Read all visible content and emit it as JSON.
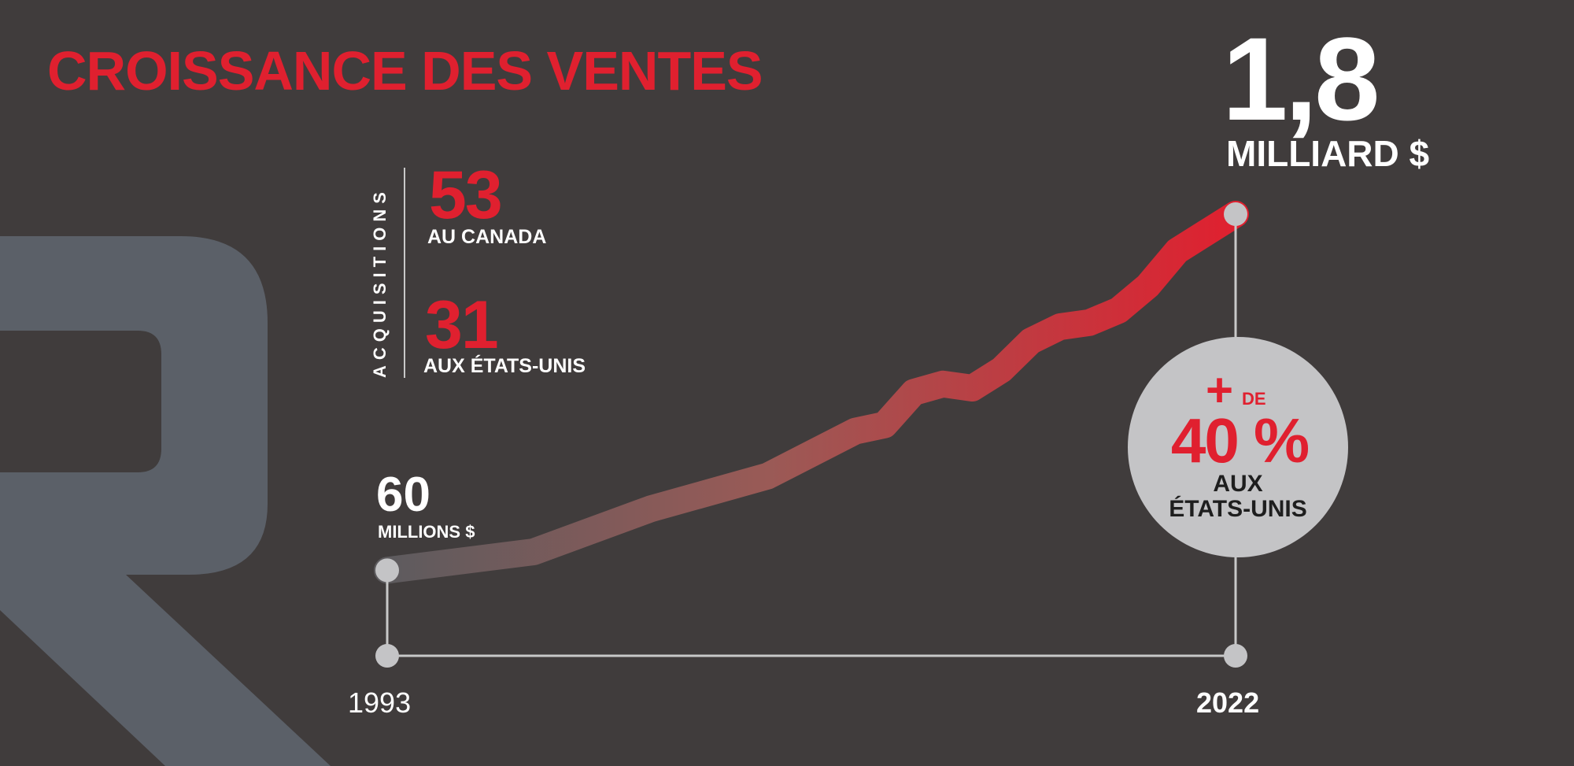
{
  "title": "CROISSANCE DES VENTES",
  "start": {
    "value": "60",
    "unit": "MILLIONS $",
    "year": "1993"
  },
  "end": {
    "value": "1,8",
    "unit": "MILLIARD $",
    "year": "2022"
  },
  "acquisitions": {
    "label": "ACQUISITIONS",
    "canada": {
      "count": "53",
      "label": "AU CANADA"
    },
    "usa": {
      "count": "31",
      "label": "AUX ÉTATS-UNIS"
    }
  },
  "us_share": {
    "plus": "+",
    "de": "DE",
    "percent": "40 %",
    "line1": "AUX",
    "line2": "ÉTATS-UNIS"
  },
  "colors": {
    "accent": "#e0202f",
    "background": "#403c3c",
    "watermark": "#5b6068",
    "bubble": "#c4c4c6"
  },
  "chart_data": {
    "type": "area",
    "title": "CROISSANCE DES VENTES",
    "xlabel": "",
    "ylabel": "",
    "x": [
      1993,
      1998,
      2002,
      2006,
      2009,
      2010,
      2011,
      2012,
      2013,
      2014,
      2015,
      2016,
      2017,
      2018,
      2019,
      2020,
      2021,
      2022
    ],
    "values": [
      0.06,
      0.15,
      0.36,
      0.52,
      0.74,
      0.77,
      0.93,
      0.97,
      0.95,
      1.04,
      1.18,
      1.25,
      1.27,
      1.33,
      1.45,
      1.62,
      1.71,
      1.8
    ],
    "unit": "milliards $",
    "xlim": [
      1993,
      2022
    ],
    "ylim": [
      0,
      1.8
    ],
    "grid": false,
    "legend": "none"
  }
}
